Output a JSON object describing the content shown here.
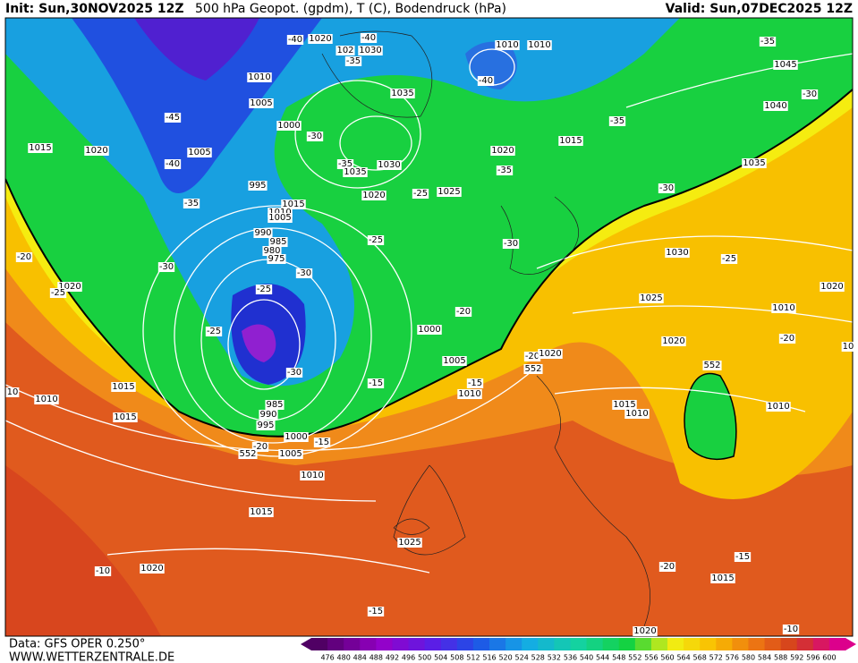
{
  "header": {
    "init": "Init: Sun,30NOV2025 12Z",
    "title": "500 hPa Geopot. (gpdm), T (C), Bodendruck (hPa)",
    "valid": "Valid: Sun,07DEC2025 12Z"
  },
  "footer": {
    "source": "Data: GFS OPER 0.250°",
    "website": "WWW.WETTERZENTRALE.DE"
  },
  "colorbar": {
    "ticks": [
      476,
      480,
      484,
      488,
      492,
      496,
      500,
      504,
      508,
      512,
      516,
      520,
      524,
      528,
      532,
      536,
      540,
      544,
      548,
      552,
      556,
      560,
      564,
      568,
      572,
      576,
      580,
      584,
      588,
      592,
      596,
      600
    ]
  },
  "map": {
    "labels": [
      "-40",
      "1020",
      "-40",
      "102",
      "1030",
      "-35",
      "1010",
      "1010",
      "-35",
      "1045",
      "1010",
      "-40",
      "1035",
      "-30",
      "1005",
      "-45",
      "1000",
      "-35",
      "1040",
      "-30",
      "1015",
      "1015",
      "1020",
      "1005",
      "1020",
      "-40",
      "1035",
      "-35",
      "-35",
      "1030",
      "1035",
      "995",
      "-25",
      "1025",
      "1020",
      "-30",
      "1015",
      "-35",
      "1010",
      "1005",
      "990",
      "-25",
      "985",
      "-30",
      "980",
      "975",
      "1030",
      "-20",
      "-25",
      "-30",
      "-30",
      "-25",
      "1020",
      "1020",
      "-25",
      "1025",
      "1010",
      "-20",
      "-25",
      "1000",
      "1020",
      "-20",
      "-20",
      "1020",
      "1005",
      "552",
      "552",
      "-30",
      "-15",
      "1015",
      "-15",
      "1010",
      "10",
      "1010",
      "1015",
      "1010",
      "1010",
      "985",
      "990",
      "995",
      "1015",
      "1000",
      "-15",
      "-20",
      "552",
      "1005",
      "1010",
      "1015",
      "1025",
      "-10",
      "1020",
      "-20",
      "-15",
      "1015",
      "-15",
      "1020",
      "-10",
      "10"
    ]
  }
}
